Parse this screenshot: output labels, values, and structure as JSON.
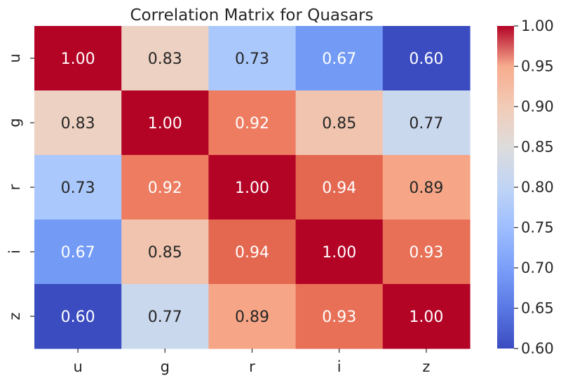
{
  "chart_data": {
    "type": "heatmap",
    "title": "Correlation Matrix for Quasars",
    "x_labels": [
      "u",
      "g",
      "r",
      "i",
      "z"
    ],
    "y_labels": [
      "u",
      "g",
      "r",
      "i",
      "z"
    ],
    "values": [
      [
        1.0,
        0.83,
        0.73,
        0.67,
        0.6
      ],
      [
        0.83,
        1.0,
        0.92,
        0.85,
        0.77
      ],
      [
        0.73,
        0.92,
        1.0,
        0.94,
        0.89
      ],
      [
        0.67,
        0.85,
        0.94,
        1.0,
        0.93
      ],
      [
        0.6,
        0.77,
        0.89,
        0.93,
        1.0
      ]
    ],
    "cell_text": [
      [
        "1.00",
        "0.83",
        "0.73",
        "0.67",
        "0.60"
      ],
      [
        "0.83",
        "1.00",
        "0.92",
        "0.85",
        "0.77"
      ],
      [
        "0.73",
        "0.92",
        "1.00",
        "0.94",
        "0.89"
      ],
      [
        "0.67",
        "0.85",
        "0.94",
        "1.00",
        "0.93"
      ],
      [
        "0.60",
        "0.77",
        "0.89",
        "0.93",
        "1.00"
      ]
    ],
    "colormap": "coolwarm",
    "vmin": 0.6,
    "vmax": 1.0,
    "colorbar_ticks": [
      "0.60",
      "0.65",
      "0.70",
      "0.75",
      "0.80",
      "0.85",
      "0.90",
      "0.95",
      "1.00"
    ]
  }
}
